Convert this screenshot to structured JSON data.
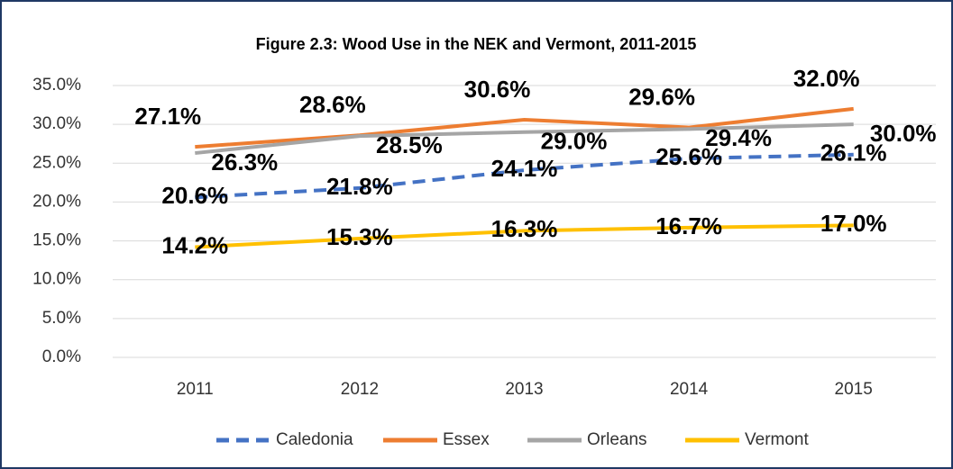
{
  "chart_data": {
    "type": "line",
    "title": "Figure 2.3: Wood Use in the NEK and Vermont, 2011-2015",
    "categories": [
      "2011",
      "2012",
      "2013",
      "2014",
      "2015"
    ],
    "series": [
      {
        "name": "Caledonia",
        "color": "#4472c4",
        "dashed": true,
        "values": [
          20.6,
          21.8,
          24.1,
          25.6,
          26.1
        ],
        "value_labels": [
          "20.6%",
          "21.8%",
          "24.1%",
          "25.6%",
          "26.1%"
        ]
      },
      {
        "name": "Essex",
        "color": "#ed7d31",
        "values": [
          27.1,
          28.6,
          30.6,
          29.6,
          32.0
        ],
        "value_labels": [
          "27.1%",
          "28.6%",
          "30.6%",
          "29.6%",
          "32.0%"
        ]
      },
      {
        "name": "Orleans",
        "color": "#a5a5a5",
        "values": [
          26.3,
          28.5,
          29.0,
          29.4,
          30.0
        ],
        "value_labels": [
          "26.3%",
          "28.5%",
          "29.0%",
          "29.4%",
          "30.0%"
        ]
      },
      {
        "name": "Vermont",
        "color": "#ffc000",
        "values": [
          14.2,
          15.3,
          16.3,
          16.7,
          17.0
        ],
        "value_labels": [
          "14.2%",
          "15.3%",
          "16.3%",
          "16.7%",
          "17.0%"
        ]
      }
    ],
    "ylim": [
      0,
      35
    ],
    "yticks": [
      {
        "value": 0,
        "label": "0.0%"
      },
      {
        "value": 5,
        "label": "5.0%"
      },
      {
        "value": 10,
        "label": "10.0%"
      },
      {
        "value": 15,
        "label": "15.0%"
      },
      {
        "value": 20,
        "label": "20.0%"
      },
      {
        "value": 25,
        "label": "25.0%"
      },
      {
        "value": 30,
        "label": "30.0%"
      },
      {
        "value": 35,
        "label": "35.0%"
      }
    ],
    "grid": true,
    "legend": "bottom"
  }
}
